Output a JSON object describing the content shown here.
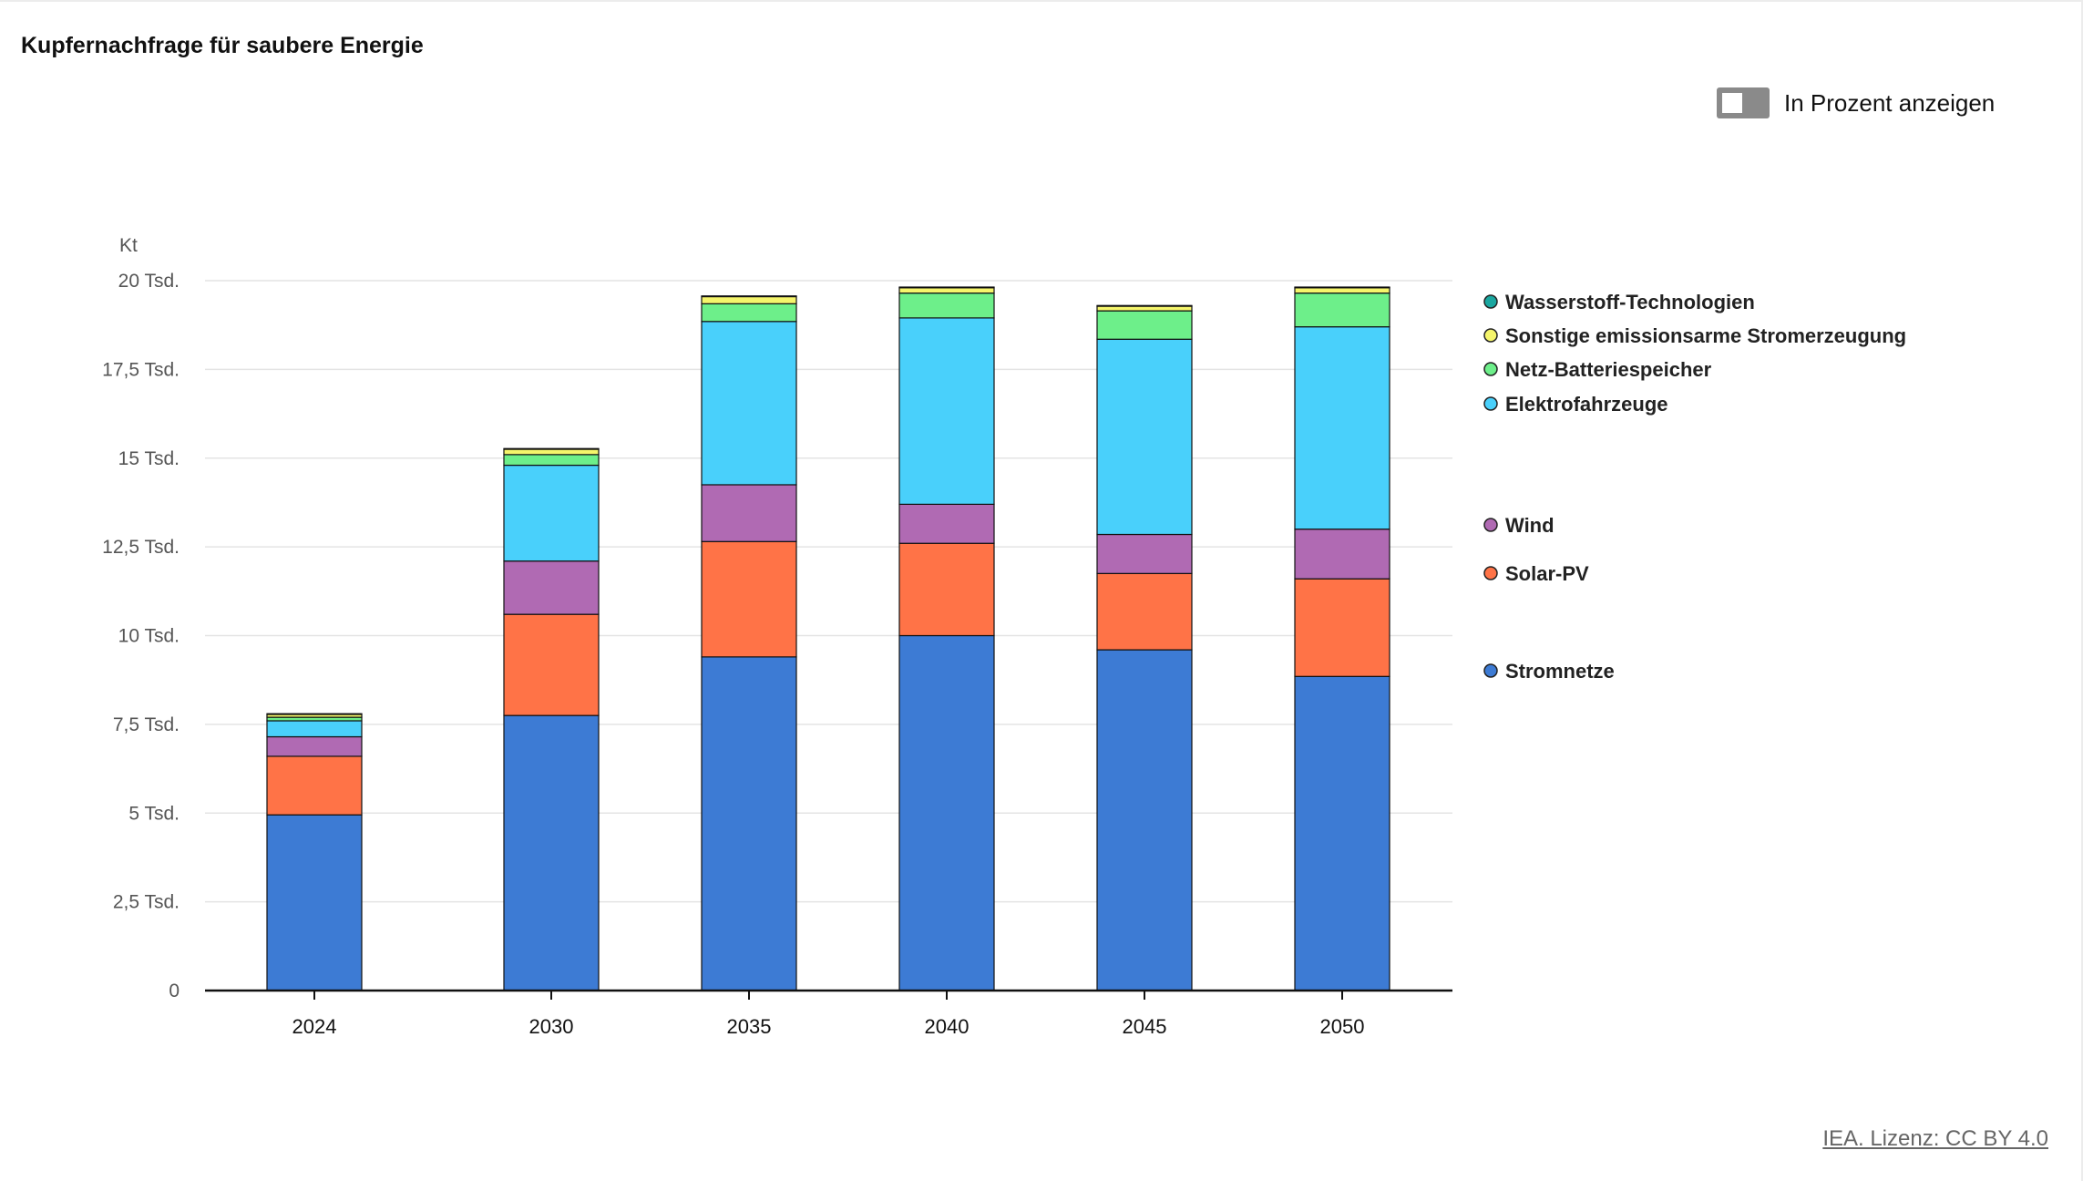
{
  "header": {
    "title": "Kupfernachfrage für saubere Energie"
  },
  "toggle": {
    "label": "In Prozent anzeigen",
    "checked": false
  },
  "footer": {
    "credit": "IEA. Lizenz: CC BY 4.0"
  },
  "chart_data": {
    "type": "bar",
    "stacked": true,
    "title": "Kupfernachfrage für saubere Energie",
    "ylabel": "Kt",
    "xlabel": "",
    "ylim": [
      0,
      20000
    ],
    "yticks": [
      0,
      2500,
      5000,
      7500,
      10000,
      12500,
      15000,
      17500,
      20000
    ],
    "ytick_labels": [
      "0",
      "2,5 Tsd.",
      "5 Tsd.",
      "7,5 Tsd.",
      "10 Tsd.",
      "12,5 Tsd.",
      "15 Tsd.",
      "17,5 Tsd.",
      "20 Tsd."
    ],
    "categories": [
      "2024",
      "2030",
      "2035",
      "2040",
      "2045",
      "2050"
    ],
    "grid": true,
    "legend_position": "right",
    "series": [
      {
        "name": "Stromnetze",
        "color": "#3d7bd4",
        "values": [
          4950,
          7750,
          9400,
          10000,
          9600,
          8850
        ]
      },
      {
        "name": "Solar-PV",
        "color": "#ff7347",
        "values": [
          1650,
          2850,
          3250,
          2600,
          2150,
          2750
        ]
      },
      {
        "name": "Wind",
        "color": "#b06ab3",
        "values": [
          550,
          1500,
          1600,
          1100,
          1100,
          1400
        ]
      },
      {
        "name": "Elektrofahrzeuge",
        "color": "#49d0fb",
        "values": [
          450,
          2700,
          4600,
          5250,
          5500,
          5700
        ]
      },
      {
        "name": "Netz-Batteriespeicher",
        "color": "#6def8a",
        "values": [
          100,
          300,
          500,
          700,
          800,
          950
        ]
      },
      {
        "name": "Sonstige emissionsarme Stromerzeugung",
        "color": "#f5f56b",
        "values": [
          80,
          150,
          200,
          150,
          130,
          150
        ]
      },
      {
        "name": "Wasserstoff-Technologien",
        "color": "#1aa7a0",
        "values": [
          20,
          20,
          20,
          20,
          20,
          20
        ]
      }
    ],
    "legend_order": [
      "Wasserstoff-Technologien",
      "Sonstige emissionsarme Stromerzeugung",
      "Netz-Batteriespeicher",
      "Elektrofahrzeuge",
      "Wind",
      "Solar-PV",
      "Stromnetze"
    ]
  }
}
